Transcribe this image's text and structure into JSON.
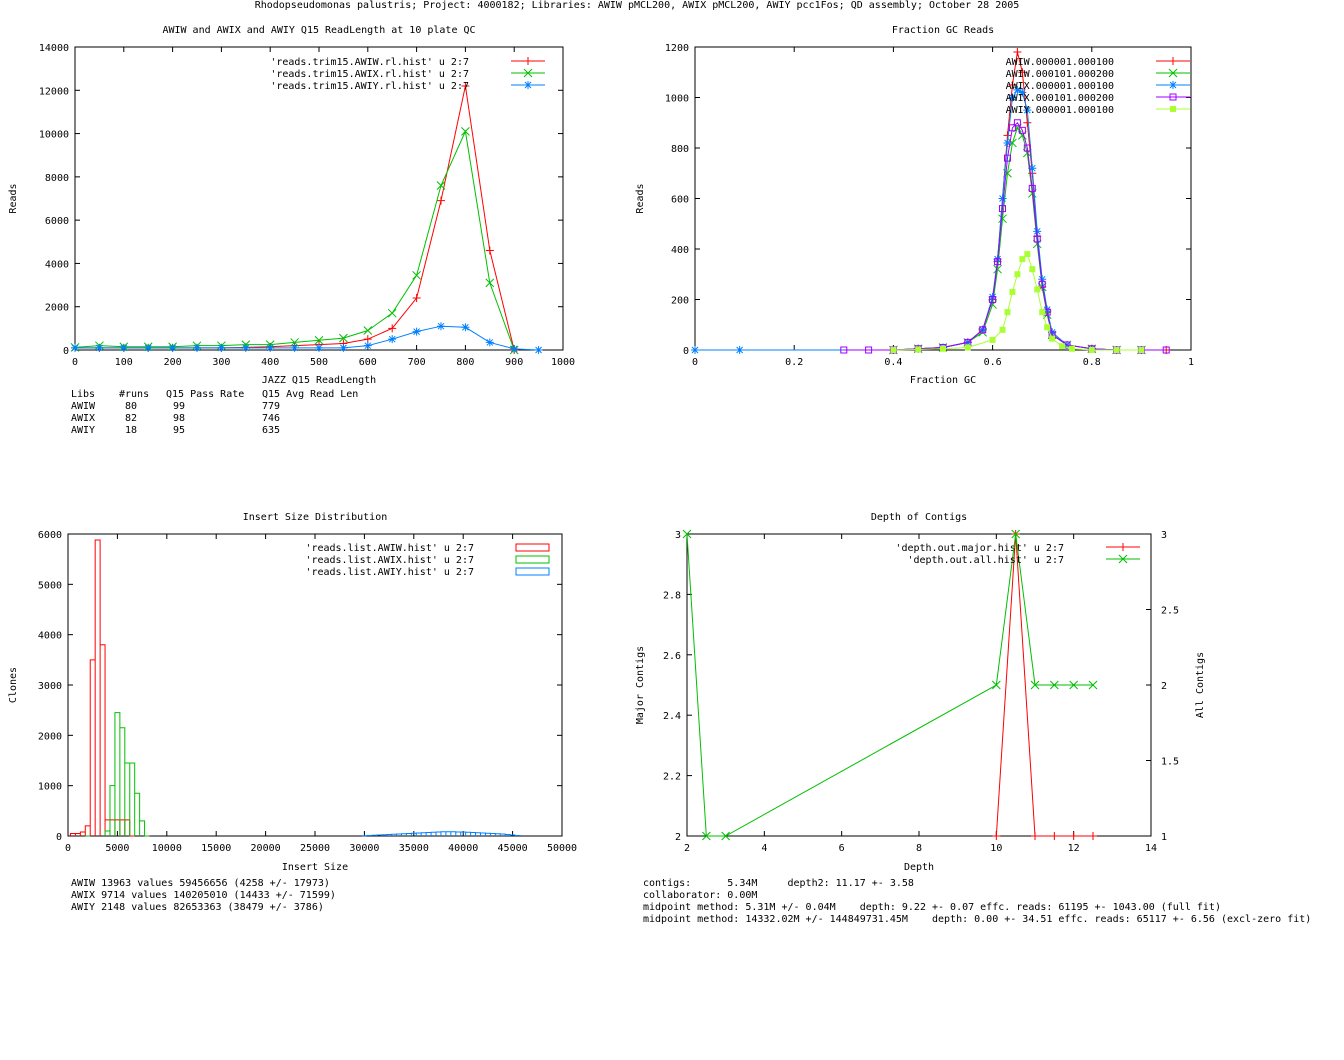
{
  "page": {
    "title": "Rhodopseudomonas palustris; Project: 4000182; Libraries: AWIW pMCL200, AWIX pMCL200, AWIY pcc1Fos; QD assembly; October 28 2005"
  },
  "chart_data": [
    {
      "id": "readlength",
      "type": "line",
      "title": "AWIW and AWIX and AWIY Q15 ReadLength at 10 plate QC",
      "xlabel": "JAZZ Q15 ReadLength",
      "ylabel": "Reads",
      "xlim": [
        0,
        1000
      ],
      "ylim": [
        0,
        14000
      ],
      "xticks": [
        0,
        100,
        200,
        300,
        400,
        500,
        600,
        700,
        800,
        900,
        1000
      ],
      "yticks": [
        0,
        2000,
        4000,
        6000,
        8000,
        10000,
        12000,
        14000
      ],
      "legend_position": "top-right",
      "series": [
        {
          "name": "'reads.trim15.AWIW.rl.hist' u 2:7",
          "color": "#ff0000",
          "marker": "plus",
          "x": [
            0,
            50,
            100,
            150,
            200,
            250,
            300,
            350,
            400,
            450,
            500,
            550,
            600,
            650,
            700,
            750,
            800,
            850,
            900
          ],
          "y": [
            100,
            100,
            100,
            100,
            100,
            100,
            100,
            120,
            150,
            200,
            250,
            300,
            500,
            1000,
            2400,
            6900,
            12200,
            4600,
            0
          ]
        },
        {
          "name": "'reads.trim15.AWIX.rl.hist' u 2:7",
          "color": "#00c000",
          "marker": "cross",
          "x": [
            0,
            50,
            100,
            150,
            200,
            250,
            300,
            350,
            400,
            450,
            500,
            550,
            600,
            650,
            700,
            750,
            800,
            850,
            900
          ],
          "y": [
            120,
            200,
            150,
            150,
            150,
            200,
            200,
            250,
            250,
            350,
            450,
            550,
            900,
            1700,
            3450,
            7600,
            10100,
            3100,
            0
          ]
        },
        {
          "name": "'reads.trim15.AWIY.rl.hist' u 2:7",
          "color": "#0080ff",
          "marker": "star",
          "x": [
            0,
            50,
            100,
            150,
            200,
            250,
            300,
            350,
            400,
            450,
            500,
            550,
            600,
            650,
            700,
            750,
            800,
            850,
            900,
            950
          ],
          "y": [
            100,
            100,
            100,
            100,
            100,
            100,
            100,
            100,
            100,
            100,
            100,
            100,
            200,
            500,
            850,
            1100,
            1050,
            350,
            50,
            0
          ]
        }
      ],
      "table": {
        "header": [
          "Libs",
          "#runs",
          "Q15 Pass Rate",
          "Q15 Avg Read Len"
        ],
        "rows": [
          [
            "AWIW",
            "80",
            "99",
            "779"
          ],
          [
            "AWIX",
            "82",
            "98",
            "746"
          ],
          [
            "AWIY",
            "18",
            "95",
            "635"
          ]
        ]
      }
    },
    {
      "id": "fractiongc",
      "type": "scatter",
      "title": "Fraction GC Reads",
      "xlabel": "Fraction GC",
      "ylabel": "Reads",
      "xlim": [
        0,
        1
      ],
      "ylim": [
        0,
        1200
      ],
      "xticks": [
        0,
        0.2,
        0.4,
        0.6,
        0.8,
        1
      ],
      "yticks": [
        0,
        200,
        400,
        600,
        800,
        1000,
        1200
      ],
      "legend_position": "top-right",
      "series": [
        {
          "name": "AWIW.000001.000100",
          "color": "#ff0000",
          "marker": "plus",
          "x": [
            0.4,
            0.45,
            0.5,
            0.55,
            0.58,
            0.6,
            0.61,
            0.62,
            0.63,
            0.64,
            0.65,
            0.66,
            0.67,
            0.68,
            0.69,
            0.7,
            0.71,
            0.72,
            0.75,
            0.8,
            0.85,
            0.9,
            0.95
          ],
          "y": [
            0,
            5,
            10,
            30,
            80,
            200,
            350,
            600,
            850,
            1050,
            1180,
            1100,
            900,
            700,
            450,
            250,
            150,
            70,
            20,
            5,
            0,
            0,
            0
          ]
        },
        {
          "name": "AWIW.000101.000200",
          "color": "#00c000",
          "marker": "cross",
          "x": [
            0.4,
            0.45,
            0.5,
            0.55,
            0.58,
            0.6,
            0.61,
            0.62,
            0.63,
            0.64,
            0.65,
            0.66,
            0.67,
            0.68,
            0.69,
            0.7,
            0.71,
            0.72,
            0.75,
            0.8,
            0.85,
            0.9
          ],
          "y": [
            0,
            5,
            10,
            30,
            70,
            180,
            320,
            520,
            700,
            820,
            880,
            850,
            780,
            620,
            420,
            250,
            140,
            60,
            20,
            5,
            0,
            0
          ]
        },
        {
          "name": "AWIX.000001.000100",
          "color": "#0080ff",
          "marker": "star",
          "x": [
            0,
            0.09,
            0.4,
            0.45,
            0.5,
            0.55,
            0.58,
            0.6,
            0.61,
            0.62,
            0.63,
            0.64,
            0.65,
            0.66,
            0.67,
            0.68,
            0.69,
            0.7,
            0.71,
            0.72,
            0.75,
            0.8,
            0.85,
            0.9
          ],
          "y": [
            0,
            0,
            0,
            5,
            10,
            30,
            80,
            210,
            360,
            600,
            820,
            1000,
            1030,
            1020,
            950,
            720,
            470,
            280,
            160,
            70,
            20,
            5,
            0,
            0
          ]
        },
        {
          "name": "AWIX.000101.000200",
          "color": "#a000ff",
          "marker": "square",
          "x": [
            0.3,
            0.35,
            0.4,
            0.45,
            0.5,
            0.55,
            0.58,
            0.6,
            0.61,
            0.62,
            0.63,
            0.64,
            0.65,
            0.66,
            0.67,
            0.68,
            0.69,
            0.7,
            0.71,
            0.72,
            0.75,
            0.8,
            0.85,
            0.9,
            0.95
          ],
          "y": [
            0,
            0,
            0,
            5,
            10,
            30,
            80,
            200,
            350,
            560,
            760,
            880,
            900,
            870,
            800,
            640,
            440,
            260,
            150,
            60,
            20,
            5,
            0,
            0,
            0
          ]
        },
        {
          "name": "AWIY.000001.000100",
          "color": "#aaff33",
          "marker": "filled-square",
          "x": [
            0.4,
            0.45,
            0.5,
            0.55,
            0.6,
            0.62,
            0.63,
            0.64,
            0.65,
            0.66,
            0.67,
            0.68,
            0.69,
            0.7,
            0.71,
            0.72,
            0.74,
            0.76,
            0.8,
            0.85,
            0.9
          ],
          "y": [
            0,
            2,
            5,
            10,
            40,
            80,
            150,
            230,
            300,
            360,
            380,
            320,
            240,
            150,
            90,
            45,
            15,
            5,
            0,
            0,
            0
          ]
        }
      ]
    },
    {
      "id": "insertsize",
      "type": "histogram",
      "title": "Insert Size Distribution",
      "xlabel": "Insert Size",
      "ylabel": "Clones",
      "xlim": [
        0,
        50000
      ],
      "ylim": [
        0,
        6000
      ],
      "xticks": [
        0,
        5000,
        10000,
        15000,
        20000,
        25000,
        30000,
        35000,
        40000,
        45000,
        50000
      ],
      "yticks": [
        0,
        1000,
        2000,
        3000,
        4000,
        5000,
        6000
      ],
      "legend_position": "top-right",
      "series": [
        {
          "name": "'reads.list.AWIW.hist' u 2:7",
          "color": "#ff0000",
          "bin_width": 500,
          "x": [
            500,
            1000,
            1500,
            2000,
            2500,
            3000,
            3500,
            4000,
            4500,
            5000,
            5500,
            6000,
            6500
          ],
          "y": [
            50,
            50,
            80,
            200,
            3500,
            5880,
            3800,
            320,
            320,
            320,
            320,
            320,
            0
          ]
        },
        {
          "name": "'reads.list.AWIX.hist' u 2:7",
          "color": "#00c000",
          "bin_width": 500,
          "x": [
            2000,
            4000,
            4500,
            5000,
            5500,
            6000,
            6500,
            7000,
            7500,
            8000
          ],
          "y": [
            0,
            100,
            1000,
            2450,
            2150,
            1450,
            1450,
            850,
            300,
            0
          ]
        },
        {
          "name": "'reads.list.AWIY.hist' u 2:7",
          "color": "#0080ff",
          "bin_width": 500,
          "x": [
            30000,
            30500,
            31000,
            31500,
            32000,
            32500,
            33000,
            33500,
            34000,
            34500,
            35000,
            35500,
            36000,
            36500,
            37000,
            37500,
            38000,
            38500,
            39000,
            39500,
            40000,
            40500,
            41000,
            41500,
            42000,
            42500,
            43000,
            43500,
            44000,
            44500,
            45000,
            45500
          ],
          "y": [
            5,
            10,
            15,
            20,
            25,
            30,
            35,
            40,
            45,
            50,
            55,
            60,
            65,
            70,
            75,
            80,
            85,
            85,
            85,
            80,
            80,
            75,
            70,
            65,
            60,
            55,
            50,
            45,
            40,
            30,
            20,
            10
          ]
        }
      ],
      "stats": [
        "AWIW 13963 values 59456656 (4258 +/- 17973)",
        "AWIX 9714 values 140205010 (14433 +/- 71599)",
        "AWIY 2148 values 82653363 (38479 +/- 3786)"
      ]
    },
    {
      "id": "depth",
      "type": "line",
      "title": "Depth of Contigs",
      "xlabel": "Depth",
      "ylabel": "Major Contigs",
      "y2label": "All Contigs",
      "xlim": [
        2,
        14
      ],
      "ylim": [
        2,
        3
      ],
      "y2lim": [
        1,
        3
      ],
      "xticks": [
        2,
        4,
        6,
        8,
        10,
        12,
        14
      ],
      "yticks": [
        2,
        2.2,
        2.4,
        2.6,
        2.8,
        3
      ],
      "y2ticks": [
        1,
        1.5,
        2,
        2.5,
        3
      ],
      "legend_position": "top-right",
      "series": [
        {
          "name": "'depth.out.major.hist' u 2:7",
          "color": "#ff0000",
          "marker": "plus",
          "axis": "y1",
          "x": [
            10,
            10.5,
            11,
            11.5,
            12,
            12.5
          ],
          "y": [
            2,
            3,
            2,
            2,
            2,
            2
          ]
        },
        {
          "name": "'depth.out.all.hist' u 2:7",
          "color": "#00c000",
          "marker": "cross",
          "axis": "y2",
          "x": [
            2,
            2.5,
            3,
            10,
            10.5,
            11,
            11.5,
            12,
            12.5
          ],
          "y": [
            3,
            1,
            1,
            2,
            3,
            2,
            2,
            2,
            2
          ]
        }
      ],
      "stats": [
        "contigs:      5.34M     depth2: 11.17 +- 3.58",
        "collaborator: 0.00M",
        "midpoint method: 5.31M +/- 0.04M    depth: 9.22 +- 0.07 effc. reads: 61195 +- 1043.00 (full fit)",
        "midpoint method: 14332.02M +/- 144849731.45M    depth: 0.00 +- 34.51 effc. reads: 65117 +- 6.56 (excl-zero fit)"
      ]
    }
  ]
}
